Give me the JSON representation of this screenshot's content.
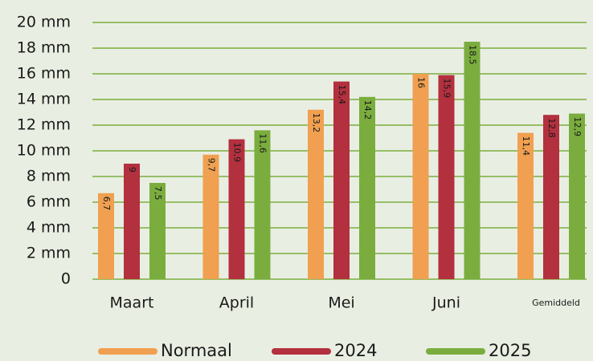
{
  "chart_data": {
    "type": "bar",
    "categories": [
      "Maart",
      "April",
      "Mei",
      "Juni",
      "Gemiddeld"
    ],
    "series": [
      {
        "name": "Normaal",
        "color": "#f0a050",
        "values": [
          6.7,
          9.7,
          13.2,
          16,
          11.4
        ],
        "value_labels": [
          "6,7",
          "9,7",
          "13,2",
          "16",
          "11,4"
        ]
      },
      {
        "name": "2024",
        "color": "#b3303f",
        "values": [
          9,
          10.9,
          15.4,
          15.9,
          12.8
        ],
        "value_labels": [
          "9",
          "10,9",
          "15,4",
          "15,9",
          "12,8"
        ]
      },
      {
        "name": "2025",
        "color": "#7aad3e",
        "values": [
          7.5,
          11.6,
          14.2,
          18.5,
          12.9
        ],
        "value_labels": [
          "7,5",
          "11,6",
          "14,2",
          "18,5",
          "12,9"
        ]
      }
    ],
    "ylim": [
      0,
      20
    ],
    "yticks": [
      0,
      {
        "value": 2,
        "label": "2 mm"
      },
      {
        "value": 4,
        "label": "4 mm"
      },
      {
        "value": 6,
        "label": "6 mm"
      },
      {
        "value": 8,
        "label": "8 mm"
      },
      {
        "value": 10,
        "label": "10 mm"
      },
      {
        "value": 12,
        "label": "12 mm"
      },
      {
        "value": 14,
        "label": "14 mm"
      },
      {
        "value": 16,
        "label": "16 mm"
      },
      {
        "value": 18,
        "label": "18 mm"
      },
      {
        "value": 20,
        "label": "20 mm"
      }
    ],
    "grid": true,
    "legend": "bottom"
  }
}
